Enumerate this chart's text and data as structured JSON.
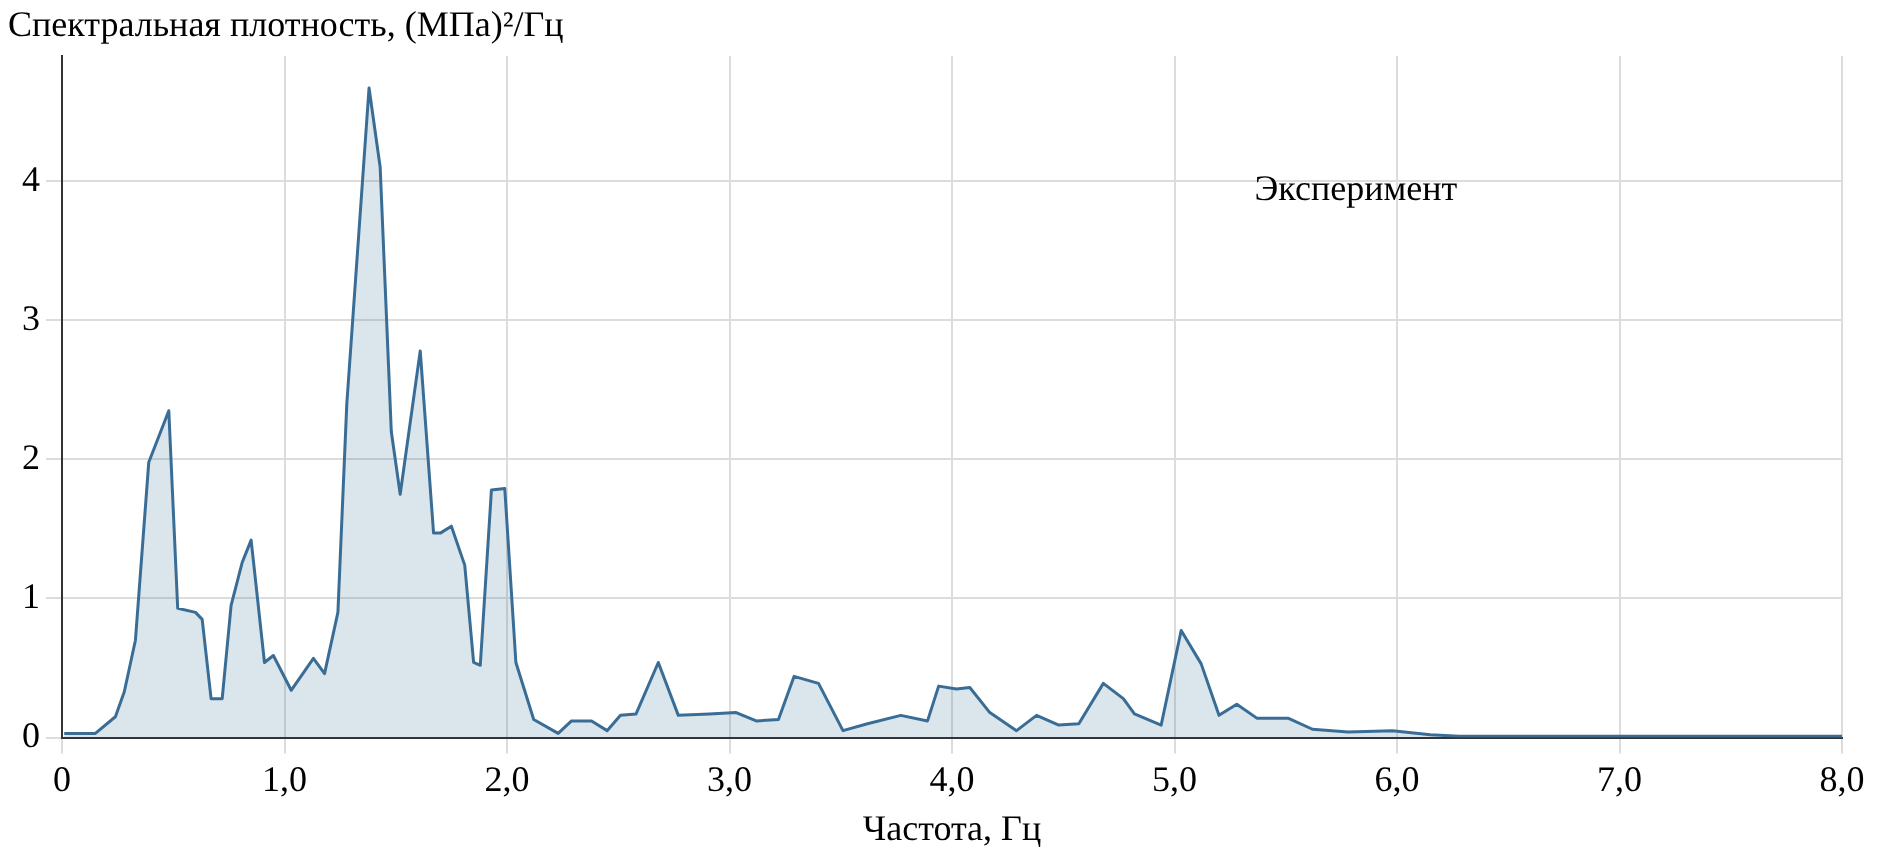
{
  "chart_data": {
    "type": "area",
    "ylabel": "Спектральная плотность, (МПа)²/Гц",
    "xlabel": "Частота, Гц",
    "annotations": [
      "Эксперимент"
    ],
    "xlim": [
      0,
      8
    ],
    "ylim": [
      0,
      4.9
    ],
    "xticks": [
      0,
      {
        "value": 1,
        "label": "1,0"
      },
      {
        "value": 2,
        "label": "2,0"
      },
      {
        "value": 3,
        "label": "3,0"
      },
      {
        "value": 4,
        "label": "4,0"
      },
      {
        "value": 5,
        "label": "5,0"
      },
      {
        "value": 6,
        "label": "6,0"
      },
      {
        "value": 7,
        "label": "7,0"
      },
      {
        "value": 8,
        "label": "8,0"
      }
    ],
    "yticks": [
      0,
      1,
      2,
      3,
      4
    ],
    "grid": true,
    "legend": false,
    "marker": "none",
    "line_style": "solid",
    "series": [
      {
        "color": "#3a6d96",
        "x": [
          0.01,
          0.15,
          0.24,
          0.28,
          0.33,
          0.39,
          0.48,
          0.52,
          0.6,
          0.63,
          0.67,
          0.72,
          0.76,
          0.81,
          0.85,
          0.91,
          0.95,
          1.03,
          1.13,
          1.18,
          1.24,
          1.28,
          1.38,
          1.43,
          1.48,
          1.52,
          1.61,
          1.67,
          1.7,
          1.75,
          1.81,
          1.85,
          1.88,
          1.93,
          1.99,
          2.04,
          2.12,
          2.23,
          2.29,
          2.38,
          2.45,
          2.51,
          2.58,
          2.68,
          2.77,
          2.91,
          3.03,
          3.12,
          3.22,
          3.29,
          3.4,
          3.51,
          3.62,
          3.77,
          3.89,
          3.94,
          4.02,
          4.08,
          4.17,
          4.29,
          4.38,
          4.48,
          4.57,
          4.68,
          4.77,
          4.82,
          4.94,
          5.03,
          5.12,
          5.2,
          5.28,
          5.37,
          5.51,
          5.62,
          5.78,
          5.98,
          6.15,
          6.28,
          6.84,
          8.0
        ],
        "values": [
          0.03,
          0.03,
          0.15,
          0.33,
          0.7,
          1.98,
          2.35,
          0.93,
          0.9,
          0.85,
          0.28,
          0.28,
          0.95,
          1.26,
          1.42,
          0.54,
          0.59,
          0.34,
          0.57,
          0.46,
          0.9,
          2.4,
          4.67,
          4.1,
          2.2,
          1.75,
          2.78,
          1.47,
          1.47,
          1.52,
          1.24,
          0.54,
          0.52,
          1.78,
          1.79,
          0.54,
          0.13,
          0.03,
          0.12,
          0.12,
          0.05,
          0.16,
          0.17,
          0.54,
          0.16,
          0.17,
          0.18,
          0.12,
          0.13,
          0.44,
          0.39,
          0.05,
          0.1,
          0.16,
          0.12,
          0.37,
          0.35,
          0.36,
          0.18,
          0.05,
          0.16,
          0.09,
          0.1,
          0.39,
          0.28,
          0.17,
          0.09,
          0.77,
          0.53,
          0.16,
          0.24,
          0.14,
          0.14,
          0.06,
          0.04,
          0.05,
          0.02,
          0.01,
          0.01,
          0.01
        ]
      }
    ]
  }
}
